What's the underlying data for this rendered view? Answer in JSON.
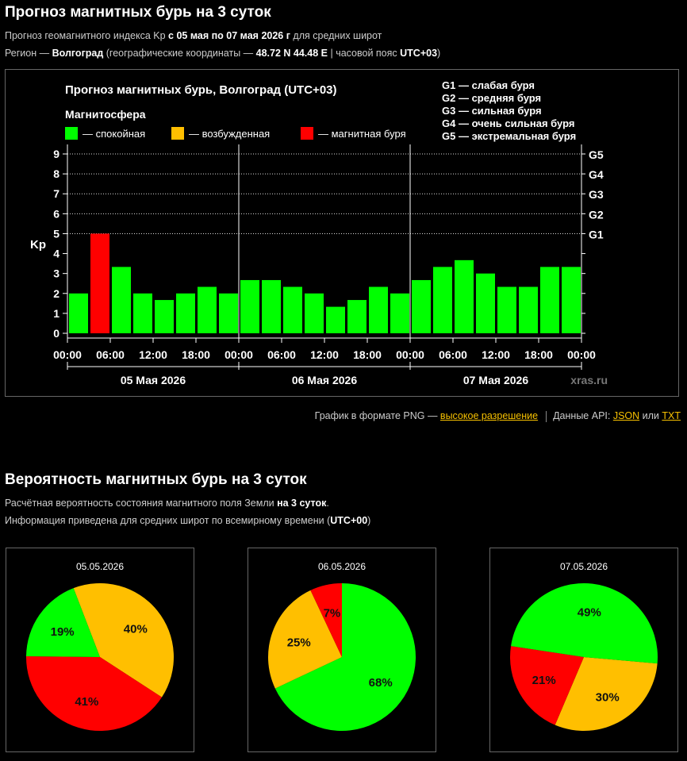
{
  "header": {
    "title": "Прогноз магнитных бурь на 3 суток",
    "line1": {
      "pre": "Прогноз геомагнитного индекса Kp ",
      "bold": "с 05 мая по 07 мая 2026 г",
      "post": " для средних широт"
    },
    "line2": {
      "pre": "Регион — ",
      "region": "Волгоград",
      "mid": " (географические координаты — ",
      "coords": "48.72 N 44.48 E",
      "mid2": " | часовой пояс ",
      "tz": "UTC+03",
      "post": ")"
    }
  },
  "chart_data": {
    "type": "bar",
    "title": "Прогноз магнитных бурь, Волгоград (UTC+03)",
    "ylabel": "Kp",
    "ylim": [
      0,
      9
    ],
    "yticks": [
      "0",
      "1",
      "2",
      "3",
      "4",
      "5",
      "6",
      "7",
      "8",
      "9"
    ],
    "g_scale": [
      {
        "label": "G1",
        "kp": 5
      },
      {
        "label": "G2",
        "kp": 6
      },
      {
        "label": "G3",
        "kp": 7
      },
      {
        "label": "G4",
        "kp": 8
      },
      {
        "label": "G5",
        "kp": 9
      }
    ],
    "g_legend": [
      "G1 — слабая буря",
      "G2 — средняя буря",
      "G3 — сильная буря",
      "G4 — очень сильная буря",
      "G5 — экстремальная буря"
    ],
    "legend_title": "Магнитосфера",
    "legend": [
      {
        "label": "— спокойная",
        "color": "#00ff00"
      },
      {
        "label": "— возбужденная",
        "color": "#ffbf00"
      },
      {
        "label": "— магнитная буря",
        "color": "#ff0000"
      }
    ],
    "xtick_labels": [
      "00:00",
      "06:00",
      "12:00",
      "18:00",
      "00:00",
      "06:00",
      "12:00",
      "18:00",
      "00:00",
      "06:00",
      "12:00",
      "18:00",
      "00:00"
    ],
    "days": [
      "05 Мая 2026",
      "06 Мая 2026",
      "07 Мая 2026"
    ],
    "values": [
      2.0,
      5.0,
      3.33,
      2.0,
      1.67,
      2.0,
      2.33,
      2.0,
      2.67,
      2.67,
      2.33,
      2.0,
      1.33,
      1.67,
      2.33,
      2.0,
      2.67,
      3.33,
      3.67,
      3.0,
      2.33,
      2.33,
      3.33,
      3.33
    ],
    "colors": [
      "#00ff00",
      "#ff0000",
      "#00ff00",
      "#00ff00",
      "#00ff00",
      "#00ff00",
      "#00ff00",
      "#00ff00",
      "#00ff00",
      "#00ff00",
      "#00ff00",
      "#00ff00",
      "#00ff00",
      "#00ff00",
      "#00ff00",
      "#00ff00",
      "#00ff00",
      "#00ff00",
      "#00ff00",
      "#00ff00",
      "#00ff00",
      "#00ff00",
      "#00ff00",
      "#00ff00"
    ],
    "watermark": "xras.ru"
  },
  "links": {
    "png_pre": "График в формате PNG — ",
    "png_link": "высокое разрешение",
    "api_pre": "Данные API: ",
    "json": "JSON",
    "or": " или ",
    "txt": "TXT"
  },
  "probability": {
    "title": "Вероятность магнитных бурь на 3 суток",
    "line1": {
      "pre": "Расчётная вероятность состояния магнитного поля Земли ",
      "bold": "на 3 суток",
      "post": "."
    },
    "line2": {
      "pre": "Информация приведена для средних широт по всемирному времени (",
      "bold": "UTC+00",
      "post": ")"
    }
  },
  "pies": [
    {
      "date": "05.05.2026",
      "green": 19,
      "yellow": 40,
      "red": 41
    },
    {
      "date": "06.05.2026",
      "green": 68,
      "yellow": 25,
      "red": 7
    },
    {
      "date": "07.05.2026",
      "green": 49,
      "yellow": 30,
      "red": 21
    }
  ],
  "colors": {
    "green": "#00ff00",
    "yellow": "#ffbf00",
    "red": "#ff0000",
    "link": "#f6c000"
  }
}
